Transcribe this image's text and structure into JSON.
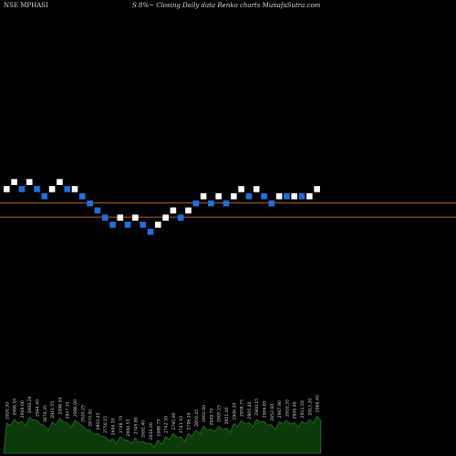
{
  "header": {
    "symbol": "NSE MPHASI",
    "caption": "S 8%~  Closing Daily data  Renko  charts MunafaSutra.com"
  },
  "colors": {
    "background": "#000000",
    "up_brick": "#ffffff",
    "down_brick": "#1e6fe0",
    "level_line": "#b0602a",
    "volume_fill": "#0b3a0b",
    "volume_edge": "#1f7a1f",
    "label_text": "#cfcfcf"
  },
  "chart_data": {
    "type": "renko",
    "bricks": [
      {
        "col": 0,
        "level": 2,
        "dir": "up"
      },
      {
        "col": 1,
        "level": 3,
        "dir": "up"
      },
      {
        "col": 2,
        "level": 2,
        "dir": "down"
      },
      {
        "col": 3,
        "level": 3,
        "dir": "up"
      },
      {
        "col": 4,
        "level": 2,
        "dir": "down"
      },
      {
        "col": 5,
        "level": 1,
        "dir": "down"
      },
      {
        "col": 6,
        "level": 2,
        "dir": "up"
      },
      {
        "col": 7,
        "level": 3,
        "dir": "up"
      },
      {
        "col": 8,
        "level": 2,
        "dir": "down"
      },
      {
        "col": 9,
        "level": 2,
        "dir": "up"
      },
      {
        "col": 10,
        "level": 1,
        "dir": "down"
      },
      {
        "col": 11,
        "level": 0,
        "dir": "down"
      },
      {
        "col": 12,
        "level": -1,
        "dir": "down"
      },
      {
        "col": 13,
        "level": -2,
        "dir": "down"
      },
      {
        "col": 14,
        "level": -3,
        "dir": "down"
      },
      {
        "col": 15,
        "level": -2,
        "dir": "up"
      },
      {
        "col": 16,
        "level": -3,
        "dir": "down"
      },
      {
        "col": 17,
        "level": -2,
        "dir": "up"
      },
      {
        "col": 18,
        "level": -3,
        "dir": "down"
      },
      {
        "col": 19,
        "level": -4,
        "dir": "down"
      },
      {
        "col": 20,
        "level": -3,
        "dir": "up"
      },
      {
        "col": 21,
        "level": -2,
        "dir": "up"
      },
      {
        "col": 22,
        "level": -1,
        "dir": "up"
      },
      {
        "col": 23,
        "level": -2,
        "dir": "down"
      },
      {
        "col": 24,
        "level": -1,
        "dir": "up"
      },
      {
        "col": 25,
        "level": 0,
        "dir": "down"
      },
      {
        "col": 26,
        "level": 1,
        "dir": "up"
      },
      {
        "col": 27,
        "level": 0,
        "dir": "down"
      },
      {
        "col": 28,
        "level": 1,
        "dir": "up"
      },
      {
        "col": 29,
        "level": 0,
        "dir": "down"
      },
      {
        "col": 30,
        "level": 1,
        "dir": "up"
      },
      {
        "col": 31,
        "level": 2,
        "dir": "up"
      },
      {
        "col": 32,
        "level": 1,
        "dir": "down"
      },
      {
        "col": 33,
        "level": 2,
        "dir": "up"
      },
      {
        "col": 34,
        "level": 1,
        "dir": "down"
      },
      {
        "col": 35,
        "level": 0,
        "dir": "down"
      },
      {
        "col": 36,
        "level": 1,
        "dir": "up"
      },
      {
        "col": 37,
        "level": 1,
        "dir": "down"
      },
      {
        "col": 38,
        "level": 1,
        "dir": "up"
      },
      {
        "col": 39,
        "level": 1,
        "dir": "down"
      },
      {
        "col": 40,
        "level": 1,
        "dir": "up"
      },
      {
        "col": 41,
        "level": 2,
        "dir": "up"
      }
    ],
    "level_lines": [
      1,
      -1
    ],
    "volume": [
      0.55,
      0.62,
      0.58,
      0.66,
      0.6,
      0.5,
      0.57,
      0.64,
      0.56,
      0.6,
      0.5,
      0.42,
      0.36,
      0.3,
      0.26,
      0.3,
      0.24,
      0.28,
      0.22,
      0.18,
      0.24,
      0.3,
      0.36,
      0.3,
      0.36,
      0.42,
      0.5,
      0.44,
      0.5,
      0.46,
      0.54,
      0.6,
      0.56,
      0.62,
      0.58,
      0.52,
      0.58,
      0.6,
      0.56,
      0.58,
      0.62,
      0.68
    ],
    "price_labels": [
      "2950.30",
      "2998.10",
      "2949.00",
      "3000.20",
      "2944.40",
      "2876.35",
      "2941.55",
      "2998.50",
      "2947.35",
      "2996.00",
      "2920.25",
      "2870.05",
      "2802.45",
      "2750.15",
      "2694.10",
      "2748.70",
      "2690.55",
      "2745.80",
      "2692.40",
      "2634.20",
      "2688.75",
      "2742.30",
      "2795.90",
      "2741.10",
      "2796.20",
      "2850.45",
      "2903.60",
      "2849.70",
      "2905.15",
      "2851.40",
      "2906.30",
      "2958.75",
      "2905.40",
      "2960.15",
      "2906.85",
      "2852.60",
      "2907.90",
      "2910.35",
      "2906.40",
      "2911.50",
      "2913.20",
      "2966.40"
    ]
  }
}
